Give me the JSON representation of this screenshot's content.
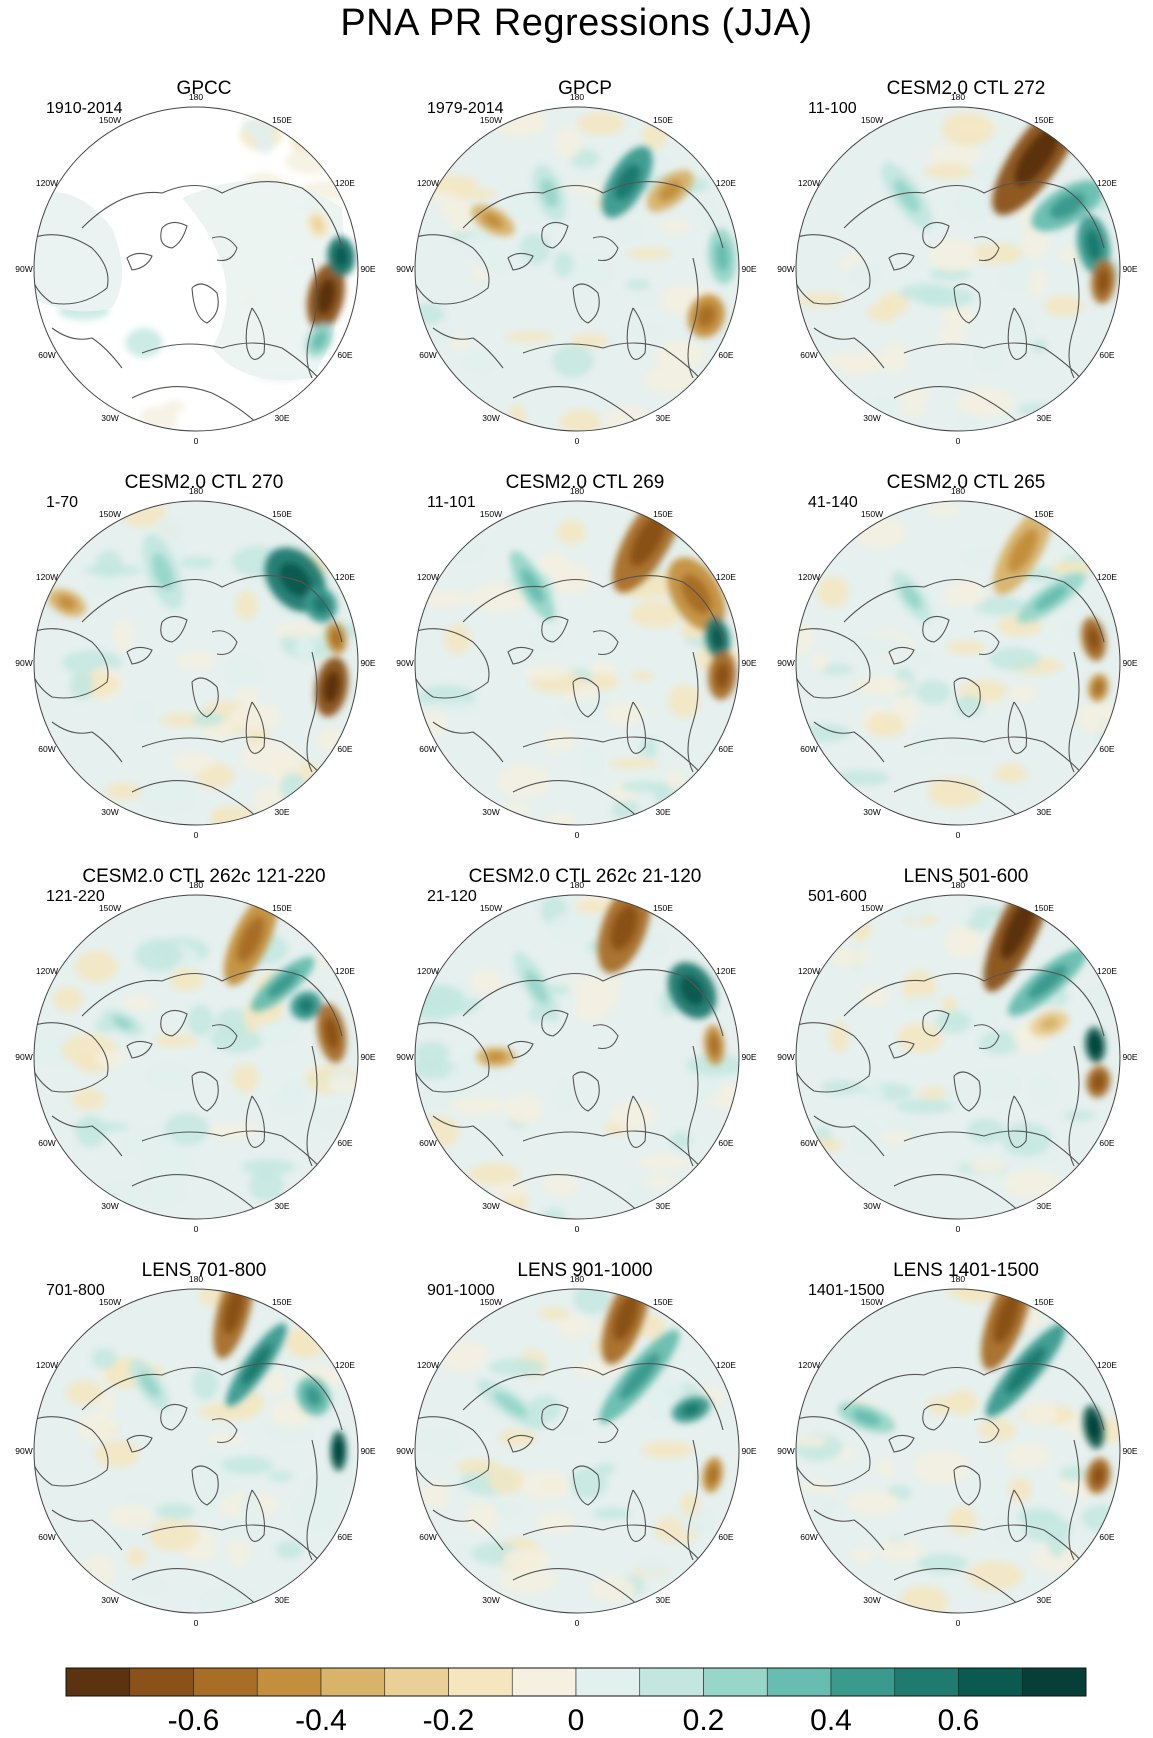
{
  "title": "PNA PR Regressions (JJA)",
  "longitude_labels": [
    "180",
    "150E",
    "120E",
    "90E",
    "60E",
    "30E",
    "0",
    "30W",
    "60W",
    "90W",
    "120W",
    "150W"
  ],
  "panels": [
    {
      "title": "GPCC",
      "years": "1910-2014"
    },
    {
      "title": "GPCP",
      "years": "1979-2014"
    },
    {
      "title": "CESM2.0 CTL 272",
      "years": "11-100"
    },
    {
      "title": "CESM2.0 CTL 270",
      "years": "1-70"
    },
    {
      "title": "CESM2.0 CTL 269",
      "years": "11-101"
    },
    {
      "title": "CESM2.0 CTL 265",
      "years": "41-140"
    },
    {
      "title": "CESM2.0 CTL 262c 121-220",
      "years": "121-220"
    },
    {
      "title": "CESM2.0 CTL 262c 21-120",
      "years": "21-120"
    },
    {
      "title": "LENS 501-600",
      "years": "501-600"
    },
    {
      "title": "LENS 701-800",
      "years": "701-800"
    },
    {
      "title": "LENS 901-1000",
      "years": "901-1000"
    },
    {
      "title": "LENS 1401-1500",
      "years": "1401-1500"
    }
  ],
  "colorbar": {
    "colors": [
      "#5c3310",
      "#8a5118",
      "#a86e26",
      "#c48f3d",
      "#d8b36a",
      "#ead097",
      "#f5e6bf",
      "#f5f0e1",
      "#e2f0ee",
      "#c3e7e0",
      "#98d6ca",
      "#67bdb0",
      "#3a9a8e",
      "#1f7a70",
      "#0b5a50",
      "#053f37"
    ],
    "tick_labels": [
      "-0.6",
      "-0.4",
      "-0.2",
      "0",
      "0.2",
      "0.4",
      "0.6"
    ],
    "tick_values": [
      -0.6,
      -0.4,
      -0.2,
      0,
      0.2,
      0.4,
      0.6
    ],
    "min": -0.8,
    "max": 0.8
  },
  "palette": {
    "land_background": "#e6f0ee",
    "missing": "#ffffff",
    "coastline": "#555555"
  }
}
